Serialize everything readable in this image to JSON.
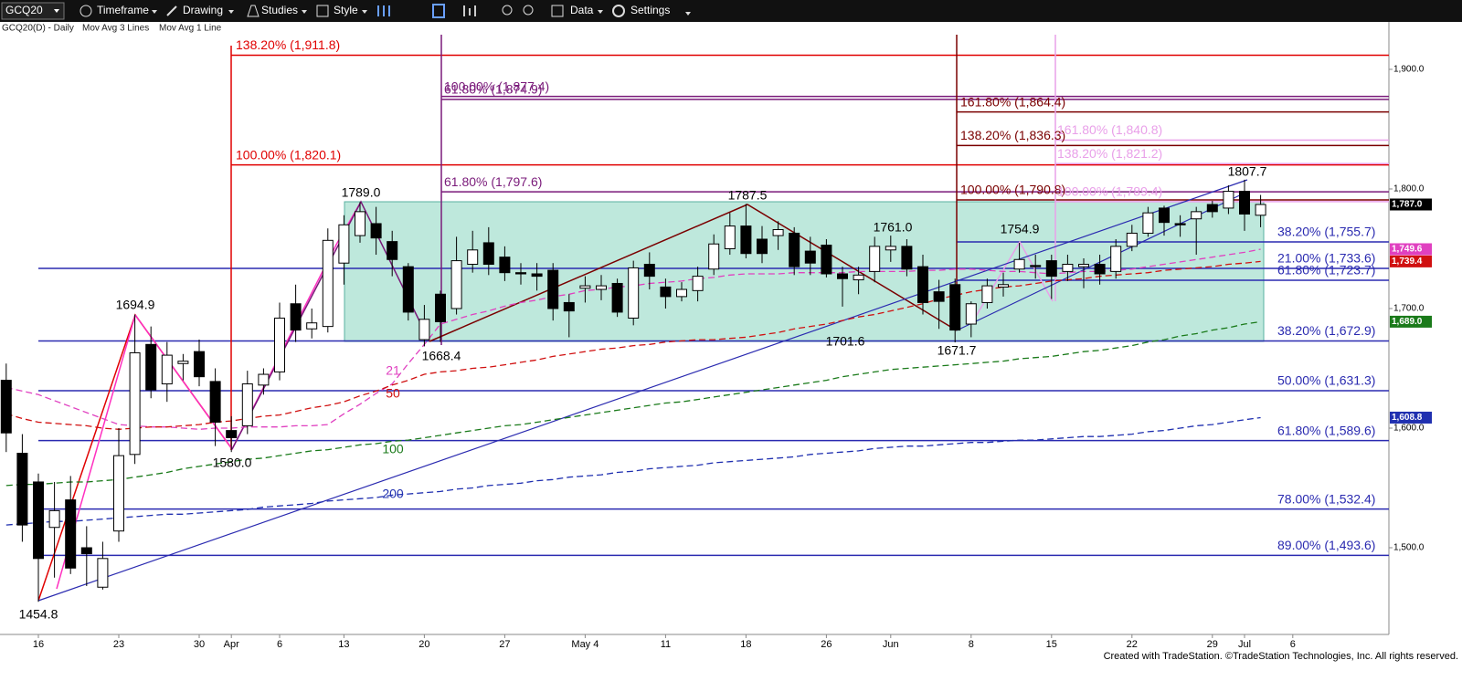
{
  "toolbar": {
    "symbol": "GCQ20",
    "items": [
      "Timeframe",
      "Drawing",
      "Studies",
      "Style",
      "Data",
      "Settings"
    ]
  },
  "chart_header": {
    "title": "GCQ20(D) - Daily",
    "studies": [
      "Mov Avg 3 Lines",
      "Mov Avg 1 Line"
    ]
  },
  "footer": "Created with TradeStation. ©TradeStation Technologies, Inc. All rights reserved.",
  "chart_data": {
    "type": "candlestick",
    "title": "GCQ20(D) - Daily",
    "categories": [
      null,
      null,
      "16",
      null,
      null,
      null,
      null,
      "23",
      null,
      null,
      null,
      null,
      "30",
      null,
      "Apr",
      null,
      null,
      "6",
      null,
      null,
      null,
      "13",
      null,
      null,
      null,
      null,
      "20",
      null,
      null,
      null,
      null,
      "27",
      null,
      null,
      null,
      null,
      "May 4",
      null,
      null,
      null,
      null,
      "11",
      null,
      null,
      null,
      null,
      "18",
      null,
      null,
      null,
      null,
      "26",
      null,
      null,
      null,
      "Jun",
      null,
      null,
      null,
      null,
      "8",
      null,
      null,
      null,
      null,
      "15",
      null,
      null,
      null,
      null,
      "22",
      null,
      null,
      null,
      null,
      "29",
      null,
      "Jul",
      null,
      null,
      "6"
    ],
    "candles": {
      "open": [
        1640,
        1579,
        1555,
        1517,
        1540,
        1500,
        1467,
        1514,
        1578,
        1670,
        1637,
        1654,
        1664,
        1639,
        1598,
        1602,
        1636,
        1647,
        1704,
        1683,
        1685,
        1738,
        1761,
        1771,
        1756,
        1735,
        1674,
        1712,
        1700,
        1737,
        1755,
        1743,
        1730,
        1729,
        1732,
        1705,
        1717,
        1716,
        1721,
        1692,
        1737,
        1718,
        1710,
        1715,
        1733,
        1750,
        1769,
        1758,
        1761,
        1763,
        1748,
        1753,
        1729,
        1724,
        1731,
        1749,
        1752,
        1735,
        1714,
        1720,
        1687,
        1705,
        1718,
        1733,
        1736,
        1740,
        1731,
        1735,
        1737,
        1731,
        1752,
        1763,
        1784,
        1771,
        1775,
        1787,
        1784,
        1798,
        1778,
        null,
        null
      ],
      "high": [
        1654,
        1595,
        1562,
        1555,
        1560,
        1518,
        1505,
        1600,
        1694.9,
        1685,
        1672,
        1662,
        1674,
        1650,
        1610,
        1648,
        1650,
        1705,
        1720,
        1700,
        1767,
        1778,
        1789,
        1785,
        1765,
        1738,
        1703,
        1715,
        1760,
        1765,
        1768,
        1752,
        1738,
        1738,
        1738,
        1712,
        1727,
        1728,
        1725,
        1740,
        1747,
        1725,
        1722,
        1735,
        1762,
        1780,
        1787.5,
        1769,
        1773,
        1768,
        1760,
        1758,
        1735,
        1735,
        1760,
        1761,
        1758,
        1745,
        1724,
        1725,
        1706,
        1725,
        1730,
        1754.9,
        1745,
        1745,
        1745,
        1742,
        1745,
        1758,
        1770,
        1785,
        1786,
        1778,
        1785,
        1790,
        1803,
        1807.7,
        1795,
        null,
        null
      ],
      "low": [
        1580,
        1505,
        1454.8,
        1475,
        1478,
        1468,
        1465,
        1505,
        1570,
        1625,
        1622,
        1640,
        1635,
        1585,
        1580,
        1595,
        1628,
        1640,
        1672,
        1675,
        1680,
        1720,
        1755,
        1745,
        1727,
        1690,
        1668.4,
        1672,
        1695,
        1730,
        1728,
        1723,
        1720,
        1715,
        1690,
        1676,
        1705,
        1707,
        1693,
        1686,
        1716,
        1700,
        1706,
        1706,
        1728,
        1745,
        1742,
        1738,
        1749,
        1728,
        1728,
        1726,
        1701.6,
        1712,
        1722,
        1739,
        1727,
        1695,
        1683,
        1671.7,
        1676,
        1700,
        1710,
        1730,
        1725,
        1708,
        1723,
        1717,
        1720,
        1725,
        1748,
        1760,
        1761,
        1760,
        1745,
        1776,
        1779,
        1765,
        1768,
        null,
        null
      ],
      "close": [
        1596,
        1519,
        1491,
        1531,
        1483,
        1495,
        1491,
        1577,
        1663,
        1632,
        1661,
        1656,
        1643,
        1605,
        1592,
        1637,
        1645,
        1692,
        1682,
        1688,
        1757,
        1770,
        1781,
        1759,
        1741,
        1697,
        1691,
        1689,
        1740,
        1749,
        1737,
        1730,
        1729,
        1727,
        1700,
        1698,
        1719,
        1719,
        1697,
        1734,
        1727,
        1710,
        1716,
        1727,
        1754,
        1769,
        1746,
        1746,
        1766,
        1735,
        1738,
        1729,
        1725,
        1728,
        1752,
        1752,
        1733,
        1705,
        1706,
        1682,
        1704,
        1719,
        1720,
        1741,
        1735,
        1727,
        1737,
        1737,
        1729,
        1752,
        1763,
        1780,
        1772,
        1770,
        1781,
        1781,
        1798,
        1779,
        1787,
        null,
        null
      ],
      "up_color": "#ffffff",
      "down_color": "#000000",
      "last_label": "1,787.0"
    },
    "series": [
      {
        "name": "21",
        "color": "#e040c0",
        "last_label": "1,749.6",
        "values": [
          1634,
          1631,
          1628,
          1623,
          1618,
          1613,
          1608,
          1603,
          1602,
          1601,
          1601,
          1600,
          1599,
          1600,
          1600,
          1601,
          1601,
          1601,
          1602,
          1602,
          1603,
          1612,
          1620,
          1629,
          1637,
          1654,
          1670,
          1687,
          1691,
          1695,
          1698,
          1702,
          1705,
          1707,
          1710,
          1712,
          1715,
          1716,
          1718,
          1719,
          1721,
          1722,
          1723,
          1725,
          1726,
          1728,
          1729,
          1729,
          1729,
          1730,
          1730,
          1730,
          1730,
          1731,
          1731,
          1731,
          1731,
          1732,
          1732,
          1733,
          1733,
          1732,
          1731,
          1731,
          1730,
          1729,
          1730,
          1731,
          1731,
          1732,
          1733,
          1735,
          1737,
          1739,
          1741,
          1743,
          1745,
          1747,
          1749.6,
          null,
          null
        ]
      },
      {
        "name": "50",
        "color": "#d01010",
        "last_label": "1,739.4",
        "values": [
          1612,
          1608,
          1605,
          1604,
          1603,
          1602,
          1600,
          1599,
          1600,
          1601,
          1601,
          1602,
          1603,
          1605,
          1606,
          1608,
          1610,
          1611,
          1614,
          1617,
          1619,
          1622,
          1627,
          1631,
          1636,
          1640,
          1645,
          1647,
          1648,
          1650,
          1651,
          1653,
          1655,
          1657,
          1660,
          1662,
          1664,
          1666,
          1667,
          1669,
          1670,
          1672,
          1673,
          1674,
          1674,
          1675,
          1676,
          1678,
          1680,
          1683,
          1685,
          1687,
          1690,
          1693,
          1695,
          1698,
          1701,
          1704,
          1708,
          1711,
          1714,
          1716,
          1718,
          1719,
          1721,
          1723,
          1724,
          1725,
          1727,
          1728,
          1729,
          1730,
          1732,
          1733,
          1734,
          1735,
          1737,
          1738,
          1739.4,
          null,
          null
        ]
      },
      {
        "name": "100",
        "color": "#1a7a1a",
        "last_label": "1,689.0",
        "values": [
          1552,
          1553,
          1553,
          1554,
          1555,
          1555,
          1556,
          1557,
          1559,
          1561,
          1563,
          1566,
          1568,
          1570,
          1572,
          1574,
          1575,
          1577,
          1579,
          1581,
          1582,
          1584,
          1586,
          1587,
          1589,
          1590,
          1592,
          1594,
          1596,
          1598,
          1600,
          1602,
          1603,
          1605,
          1607,
          1609,
          1611,
          1613,
          1615,
          1617,
          1619,
          1621,
          1622,
          1624,
          1626,
          1628,
          1630,
          1632,
          1634,
          1636,
          1638,
          1640,
          1643,
          1645,
          1647,
          1649,
          1650,
          1651,
          1652,
          1653,
          1654,
          1655,
          1656,
          1658,
          1659,
          1660,
          1662,
          1664,
          1665,
          1667,
          1669,
          1672,
          1674,
          1677,
          1679,
          1682,
          1684,
          1687,
          1689,
          null,
          null
        ]
      },
      {
        "name": "200",
        "color": "#2030b0",
        "last_label": "1,608.8",
        "values": [
          1519,
          1520,
          1521,
          1522,
          1522,
          1523,
          1524,
          1525,
          1526,
          1527,
          1528,
          1528,
          1529,
          1530,
          1531,
          1532,
          1534,
          1535,
          1536,
          1537,
          1539,
          1540,
          1541,
          1542,
          1544,
          1545,
          1546,
          1547,
          1549,
          1550,
          1552,
          1553,
          1554,
          1556,
          1557,
          1559,
          1560,
          1561,
          1563,
          1564,
          1566,
          1567,
          1568,
          1569,
          1571,
          1572,
          1573,
          1574,
          1575,
          1576,
          1578,
          1579,
          1580,
          1581,
          1583,
          1584,
          1585,
          1585,
          1586,
          1587,
          1588,
          1588,
          1589,
          1590,
          1590,
          1591,
          1592,
          1593,
          1593,
          1594,
          1595,
          1597,
          1598,
          1600,
          1602,
          1603,
          1605,
          1607,
          1608.8,
          null,
          null
        ]
      }
    ],
    "fib_tools": [
      {
        "color": "#e00000",
        "levels": [
          {
            "label": "138.20% (1,911.8)",
            "value": 1911.8
          },
          {
            "label": "100.00% (1,820.1)",
            "value": 1820.1
          }
        ]
      },
      {
        "color": "#7a1a7a",
        "levels": [
          {
            "label": "100.00% (1,877.4)",
            "value": 1877.4
          },
          {
            "label": "61.80% (1,874.9)",
            "value": 1874.9
          },
          {
            "label": "61.80% (1,797.6)",
            "value": 1797.6
          }
        ]
      },
      {
        "color": "#7a0000",
        "levels": [
          {
            "label": "161.80% (1,864.4)",
            "value": 1864.4
          },
          {
            "label": "138.20% (1,836.3)",
            "value": 1836.3
          },
          {
            "label": "100.00% (1,790.8)",
            "value": 1790.8
          }
        ]
      },
      {
        "color": "#e9a0e9",
        "levels": [
          {
            "label": "161.80% (1,840.8)",
            "value": 1840.8
          },
          {
            "label": "138.20% (1,821.2)",
            "value": 1821.2
          },
          {
            "label": "100.00% (1,789.4)",
            "value": 1789.4
          }
        ]
      },
      {
        "color": "#2a2ab0",
        "levels": [
          {
            "label": "38.20% (1,755.7)",
            "value": 1755.7
          },
          {
            "label": "61.80% (1,723.7)",
            "value": 1723.7
          }
        ]
      },
      {
        "color": "#2a2ab0",
        "levels": [
          {
            "label": "21.00% (1,733.6)",
            "value": 1733.6
          },
          {
            "label": "38.20% (1,672.9)",
            "value": 1672.9
          },
          {
            "label": "50.00% (1,631.3)",
            "value": 1631.3
          },
          {
            "label": "61.80% (1,589.6)",
            "value": 1589.6
          },
          {
            "label": "78.00% (1,532.4)",
            "value": 1532.4
          },
          {
            "label": "89.00% (1,493.6)",
            "value": 1493.6
          }
        ]
      }
    ],
    "annotations": [
      "1694.9",
      "1454.8",
      "1580.0",
      "1789.0",
      "1668.4",
      "1787.5",
      "1761.0",
      "1701.6",
      "1671.7",
      "1754.9",
      "1807.7"
    ],
    "ylim": [
      1427.5,
      1938.9
    ],
    "yticks": [
      {
        "value": 1500,
        "label": "1,500.0"
      },
      {
        "value": 1600,
        "label": "1,600.0"
      },
      {
        "value": 1700,
        "label": "1,700.0"
      },
      {
        "value": 1800,
        "label": "1,800.0"
      },
      {
        "value": 1900,
        "label": "1,900.0"
      }
    ]
  }
}
